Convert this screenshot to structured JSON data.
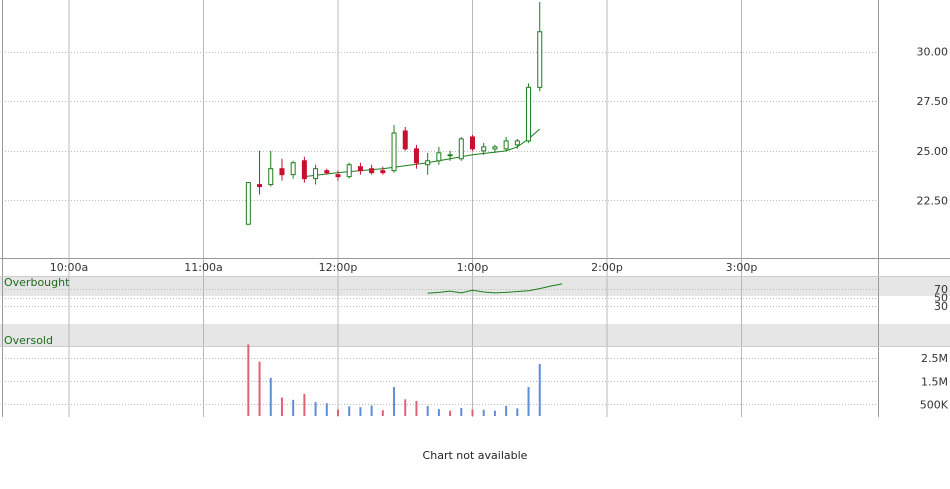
{
  "notice": "Chart not available",
  "colors": {
    "up": "#1a7f1a",
    "down": "#c8102e",
    "ma": "#1a7f1a",
    "vol_up": "#5b8ed6",
    "vol_down": "#e0607a",
    "grid": "#b8b8b8",
    "band": "#e6e6e6"
  },
  "chart_data": [
    {
      "type": "candlestick",
      "name": "price",
      "x_ticks": [
        "10:00a",
        "11:00a",
        "12:00p",
        "1:00p",
        "2:00p",
        "3:00p"
      ],
      "x_tick_minutes": [
        0,
        60,
        120,
        180,
        240,
        300
      ],
      "y_ticks": [
        "22.50",
        "25.00",
        "27.50",
        "30.00"
      ],
      "y_tick_values": [
        22.5,
        25,
        27.5,
        30
      ],
      "ylim": [
        19.6,
        32.6
      ],
      "xlim_minutes": [
        -30,
        360
      ],
      "grid": true,
      "candles": [
        {
          "t": 80,
          "o": 21.3,
          "h": 23.4,
          "l": 21.3,
          "c": 23.4
        },
        {
          "t": 85,
          "o": 23.3,
          "h": 25.0,
          "l": 22.8,
          "c": 23.2
        },
        {
          "t": 90,
          "o": 23.3,
          "h": 25.0,
          "l": 23.2,
          "c": 24.1
        },
        {
          "t": 95,
          "o": 24.1,
          "h": 24.6,
          "l": 23.5,
          "c": 23.8
        },
        {
          "t": 100,
          "o": 23.8,
          "h": 24.5,
          "l": 23.6,
          "c": 24.4
        },
        {
          "t": 105,
          "o": 24.5,
          "h": 24.7,
          "l": 23.4,
          "c": 23.6
        },
        {
          "t": 110,
          "o": 23.6,
          "h": 24.3,
          "l": 23.3,
          "c": 24.1
        },
        {
          "t": 115,
          "o": 24.0,
          "h": 24.1,
          "l": 23.8,
          "c": 23.9
        },
        {
          "t": 120,
          "o": 23.8,
          "h": 24.0,
          "l": 23.5,
          "c": 23.7
        },
        {
          "t": 125,
          "o": 23.7,
          "h": 24.4,
          "l": 23.6,
          "c": 24.3
        },
        {
          "t": 130,
          "o": 24.2,
          "h": 24.4,
          "l": 23.8,
          "c": 24.0
        },
        {
          "t": 135,
          "o": 24.1,
          "h": 24.3,
          "l": 23.8,
          "c": 23.9
        },
        {
          "t": 140,
          "o": 24.0,
          "h": 24.2,
          "l": 23.8,
          "c": 23.9
        },
        {
          "t": 145,
          "o": 24.0,
          "h": 26.3,
          "l": 23.9,
          "c": 25.9
        },
        {
          "t": 150,
          "o": 26.0,
          "h": 26.2,
          "l": 25.0,
          "c": 25.1
        },
        {
          "t": 155,
          "o": 25.1,
          "h": 25.3,
          "l": 24.1,
          "c": 24.4
        },
        {
          "t": 160,
          "o": 24.3,
          "h": 24.9,
          "l": 23.8,
          "c": 24.5
        },
        {
          "t": 165,
          "o": 24.5,
          "h": 25.2,
          "l": 24.3,
          "c": 24.9
        },
        {
          "t": 170,
          "o": 24.8,
          "h": 25.0,
          "l": 24.5,
          "c": 24.8
        },
        {
          "t": 175,
          "o": 24.6,
          "h": 25.7,
          "l": 24.5,
          "c": 25.6
        },
        {
          "t": 180,
          "o": 25.7,
          "h": 25.8,
          "l": 25.0,
          "c": 25.1
        },
        {
          "t": 185,
          "o": 25.0,
          "h": 25.4,
          "l": 24.8,
          "c": 25.2
        },
        {
          "t": 190,
          "o": 25.1,
          "h": 25.3,
          "l": 24.9,
          "c": 25.2
        },
        {
          "t": 195,
          "o": 25.1,
          "h": 25.7,
          "l": 25.0,
          "c": 25.5
        },
        {
          "t": 200,
          "o": 25.3,
          "h": 25.6,
          "l": 25.1,
          "c": 25.5
        },
        {
          "t": 205,
          "o": 25.5,
          "h": 28.4,
          "l": 25.4,
          "c": 28.2
        },
        {
          "t": 210,
          "o": 28.2,
          "h": 32.5,
          "l": 28.0,
          "c": 31.0
        }
      ],
      "ma": [
        [
          105,
          23.7
        ],
        [
          120,
          23.9
        ],
        [
          140,
          24.1
        ],
        [
          160,
          24.4
        ],
        [
          180,
          24.8
        ],
        [
          195,
          25.0
        ],
        [
          200,
          25.2
        ],
        [
          205,
          25.6
        ],
        [
          210,
          26.1
        ]
      ]
    },
    {
      "type": "line",
      "name": "oscillator",
      "band_labels": [
        "Overbought",
        "Oversold"
      ],
      "y_ticks": [
        "70",
        "50",
        "30"
      ],
      "y_tick_values": [
        70,
        50,
        30
      ],
      "ylim": [
        0,
        100
      ],
      "values": [
        [
          160,
          60
        ],
        [
          165,
          62
        ],
        [
          170,
          65
        ],
        [
          175,
          61
        ],
        [
          180,
          67
        ],
        [
          185,
          63
        ],
        [
          190,
          61
        ],
        [
          195,
          62
        ],
        [
          200,
          64
        ],
        [
          205,
          66
        ],
        [
          210,
          71
        ],
        [
          215,
          77
        ],
        [
          220,
          82
        ]
      ]
    },
    {
      "type": "bar",
      "name": "volume",
      "y_ticks": [
        "2.5M",
        "1.5M",
        "500K"
      ],
      "y_tick_values": [
        2500000,
        1500000,
        500000
      ],
      "ylim": [
        0,
        3200000
      ],
      "bars": [
        {
          "t": 80,
          "v": 3100000,
          "dir": "down"
        },
        {
          "t": 85,
          "v": 2350000,
          "dir": "down"
        },
        {
          "t": 90,
          "v": 1650000,
          "dir": "up"
        },
        {
          "t": 95,
          "v": 800000,
          "dir": "down"
        },
        {
          "t": 100,
          "v": 700000,
          "dir": "up"
        },
        {
          "t": 105,
          "v": 950000,
          "dir": "down"
        },
        {
          "t": 110,
          "v": 600000,
          "dir": "up"
        },
        {
          "t": 115,
          "v": 550000,
          "dir": "up"
        },
        {
          "t": 120,
          "v": 280000,
          "dir": "down"
        },
        {
          "t": 125,
          "v": 420000,
          "dir": "up"
        },
        {
          "t": 130,
          "v": 380000,
          "dir": "up"
        },
        {
          "t": 135,
          "v": 450000,
          "dir": "up"
        },
        {
          "t": 140,
          "v": 250000,
          "dir": "down"
        },
        {
          "t": 145,
          "v": 1250000,
          "dir": "up"
        },
        {
          "t": 150,
          "v": 720000,
          "dir": "down"
        },
        {
          "t": 155,
          "v": 650000,
          "dir": "down"
        },
        {
          "t": 160,
          "v": 430000,
          "dir": "up"
        },
        {
          "t": 165,
          "v": 300000,
          "dir": "up"
        },
        {
          "t": 170,
          "v": 230000,
          "dir": "down"
        },
        {
          "t": 175,
          "v": 350000,
          "dir": "up"
        },
        {
          "t": 180,
          "v": 280000,
          "dir": "down"
        },
        {
          "t": 185,
          "v": 270000,
          "dir": "up"
        },
        {
          "t": 190,
          "v": 230000,
          "dir": "up"
        },
        {
          "t": 195,
          "v": 430000,
          "dir": "up"
        },
        {
          "t": 200,
          "v": 330000,
          "dir": "up"
        },
        {
          "t": 205,
          "v": 1250000,
          "dir": "up"
        },
        {
          "t": 210,
          "v": 2250000,
          "dir": "up"
        }
      ]
    }
  ]
}
